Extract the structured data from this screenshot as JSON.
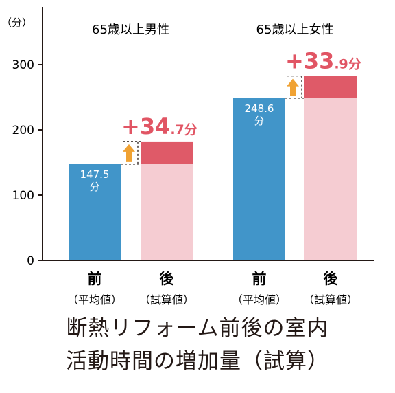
{
  "colors": {
    "before": "#4195c9",
    "after_base": "#f5ccd2",
    "after_increase": "#df5a68",
    "increase_text": "#e15564",
    "arrow": "#f0a233",
    "axis": "#231815"
  },
  "icons": {
    "increase_arrow": "up-arrow-icon"
  },
  "chart_data": {
    "type": "bar",
    "unit_label": "（分）",
    "ylim": [
      0,
      350
    ],
    "yticks": [
      0,
      100,
      200,
      300
    ],
    "groups": [
      {
        "title": "65歳以上男性",
        "before": {
          "name": "前",
          "sub": "（平均値）",
          "value": 147.5,
          "value_text": "147.5",
          "unit_text": "分"
        },
        "after": {
          "name": "後",
          "sub": "（試算値）",
          "value": 182.2
        },
        "increase": {
          "value": 34.7,
          "int_text": "+34",
          "dec_text": ".7分"
        }
      },
      {
        "title": "65歳以上女性",
        "before": {
          "name": "前",
          "sub": "（平均値）",
          "value": 248.6,
          "value_text": "248.6",
          "unit_text": "分"
        },
        "after": {
          "name": "後",
          "sub": "（試算値）",
          "value": 282.5
        },
        "increase": {
          "value": 33.9,
          "int_text": "+33",
          "dec_text": ".9分"
        }
      }
    ]
  },
  "caption": {
    "line1": "断熱リフォーム前後の室内",
    "line2": "活動時間の増加量（試算）"
  }
}
